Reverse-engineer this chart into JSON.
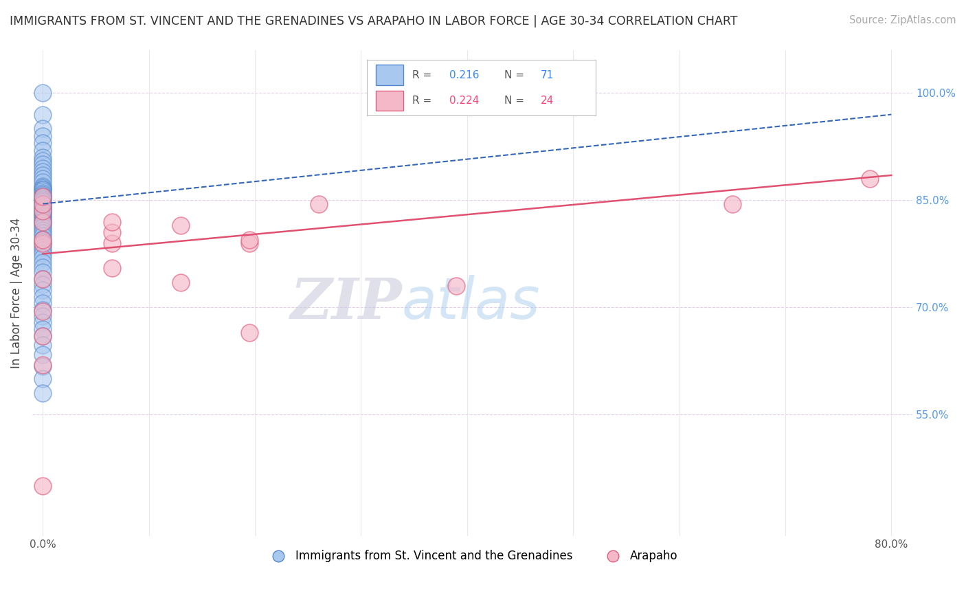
{
  "title": "IMMIGRANTS FROM ST. VINCENT AND THE GRENADINES VS ARAPAHO IN LABOR FORCE | AGE 30-34 CORRELATION CHART",
  "source": "Source: ZipAtlas.com",
  "ylabel": "In Labor Force | Age 30-34",
  "watermark": "ZIPatlas",
  "xlim": [
    -0.01,
    0.82
  ],
  "ylim": [
    0.38,
    1.06
  ],
  "xtick_positions": [
    0.0,
    0.1,
    0.2,
    0.3,
    0.4,
    0.5,
    0.6,
    0.7,
    0.8
  ],
  "xticklabels": [
    "0.0%",
    "",
    "",
    "",
    "",
    "",
    "",
    "",
    "80.0%"
  ],
  "yticks_right": [
    0.55,
    0.7,
    0.85,
    1.0
  ],
  "ytick_right_labels": [
    "55.0%",
    "70.0%",
    "85.0%",
    "100.0%"
  ],
  "blue_R": 0.216,
  "blue_N": 71,
  "pink_R": 0.224,
  "pink_N": 24,
  "blue_color": "#a8c8f0",
  "blue_edge": "#5588cc",
  "blue_line_color": "#3366bb",
  "pink_color": "#f5b8c8",
  "pink_edge": "#e06080",
  "pink_line_color": "#e05070",
  "legend_blue_color": "#3388ff",
  "legend_pink_color": "#ff4477",
  "blue_scatter_x": [
    0.0,
    0.0,
    0.0,
    0.0,
    0.0,
    0.0,
    0.0,
    0.0,
    0.0,
    0.0,
    0.0,
    0.0,
    0.0,
    0.0,
    0.0,
    0.0,
    0.0,
    0.0,
    0.0,
    0.0,
    0.0,
    0.0,
    0.0,
    0.0,
    0.0,
    0.0,
    0.0,
    0.0,
    0.0,
    0.0,
    0.0,
    0.0,
    0.0,
    0.0,
    0.0,
    0.0,
    0.0,
    0.0,
    0.0,
    0.0,
    0.0,
    0.0,
    0.0,
    0.0,
    0.0,
    0.0,
    0.0,
    0.0,
    0.0,
    0.0,
    0.0,
    0.0,
    0.0,
    0.0,
    0.0,
    0.0,
    0.0,
    0.0,
    0.0,
    0.0,
    0.0,
    0.0,
    0.0,
    0.0,
    0.0,
    0.0,
    0.0,
    0.0,
    0.0,
    0.0,
    0.0
  ],
  "blue_scatter_y": [
    1.0,
    0.97,
    0.95,
    0.94,
    0.93,
    0.92,
    0.91,
    0.905,
    0.9,
    0.895,
    0.89,
    0.885,
    0.88,
    0.875,
    0.87,
    0.868,
    0.866,
    0.865,
    0.863,
    0.86,
    0.858,
    0.856,
    0.854,
    0.852,
    0.85,
    0.848,
    0.846,
    0.844,
    0.842,
    0.84,
    0.838,
    0.836,
    0.834,
    0.832,
    0.83,
    0.828,
    0.826,
    0.824,
    0.822,
    0.82,
    0.818,
    0.815,
    0.812,
    0.808,
    0.804,
    0.8,
    0.796,
    0.792,
    0.788,
    0.784,
    0.78,
    0.775,
    0.77,
    0.763,
    0.756,
    0.749,
    0.74,
    0.732,
    0.724,
    0.715,
    0.706,
    0.697,
    0.688,
    0.679,
    0.67,
    0.66,
    0.648,
    0.634,
    0.618,
    0.6,
    0.58
  ],
  "pink_scatter_x": [
    0.0,
    0.0,
    0.0,
    0.0,
    0.0,
    0.0,
    0.0,
    0.0,
    0.0,
    0.0,
    0.0,
    0.065,
    0.065,
    0.065,
    0.065,
    0.13,
    0.13,
    0.195,
    0.195,
    0.195,
    0.26,
    0.39,
    0.65,
    0.78
  ],
  "pink_scatter_y": [
    0.45,
    0.62,
    0.66,
    0.695,
    0.74,
    0.79,
    0.795,
    0.82,
    0.835,
    0.845,
    0.855,
    0.755,
    0.79,
    0.805,
    0.82,
    0.735,
    0.815,
    0.665,
    0.79,
    0.795,
    0.845,
    0.73,
    0.845,
    0.88
  ],
  "blue_trend_x0": 0.0,
  "blue_trend_x1": 0.8,
  "blue_trend_y0": 0.845,
  "blue_trend_y1": 0.97,
  "pink_trend_x0": 0.0,
  "pink_trend_x1": 0.8,
  "pink_trend_y0": 0.775,
  "pink_trend_y1": 0.885,
  "grid_color": "#e8e8e8",
  "grid_dash_color": "#e0d0e8",
  "bg_color": "#ffffff",
  "title_fontsize": 12.5,
  "source_fontsize": 10.5,
  "watermark_fontsize": 60,
  "watermark_color": "#ddeeff",
  "watermark_color2": "#e8d8f0"
}
